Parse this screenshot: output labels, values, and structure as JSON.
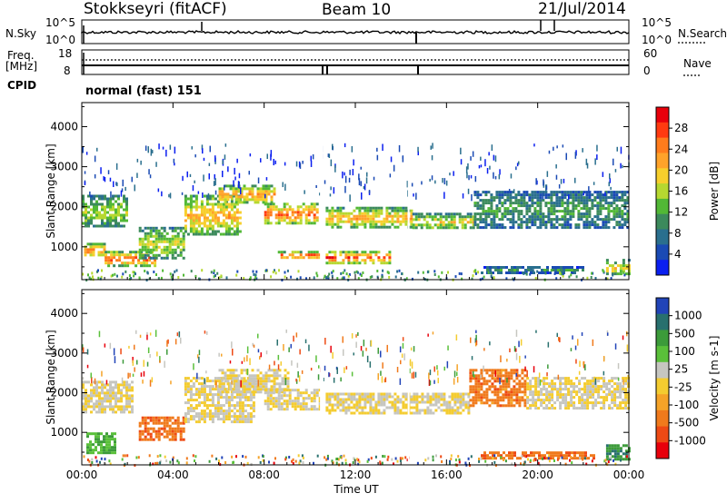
{
  "header": {
    "station": "Stokkseyri (fitACF)",
    "beam": "Beam 10",
    "date": "21/Jul/2014"
  },
  "top_panels": {
    "noise_left_label": "N.Sky",
    "noise_right_label": "N.Search",
    "noise_ticks_left": [
      "10^5",
      "10^0"
    ],
    "noise_ticks_right": [
      "10^5",
      "10^0"
    ],
    "freq_label_line1": "Freq.",
    "freq_label_line2": "[MHz]",
    "freq_ticks": [
      "18",
      "8"
    ],
    "nave_label": "Nave",
    "nave_ticks": [
      "60",
      "0"
    ],
    "cpid_label": "CPID",
    "cpid_value": "normal (fast) 151"
  },
  "chart_data": [
    {
      "type": "heatmap",
      "name": "power-panel",
      "ylabel": "Slant Range [km]",
      "xlabel": "Time UT",
      "x_ticks": [
        "00:00",
        "04:00",
        "08:00",
        "12:00",
        "16:00",
        "20:00",
        "00:00"
      ],
      "xlim_hours": [
        0,
        24
      ],
      "ylim_km": [
        180,
        4600
      ],
      "y_ticks": [
        1000,
        2000,
        3000,
        4000
      ],
      "colorbar_label": "Power [dB]",
      "colorbar_ticks": [
        "28",
        "24",
        "20",
        "16",
        "12",
        "8",
        "4"
      ],
      "colorbar_colors": [
        "#e8000b",
        "#ff3a10",
        "#ff7c1c",
        "#ffa32a",
        "#f7cf2c",
        "#b6d830",
        "#52b836",
        "#3c8a5c",
        "#2a6f8e",
        "#1a4ab4",
        "#0a1ff0"
      ],
      "bands": [
        {
          "t": [
            0.0,
            2.0
          ],
          "r": [
            1500,
            2300
          ],
          "level": 0.5
        },
        {
          "t": [
            0.1,
            1.0
          ],
          "r": [
            780,
            1100
          ],
          "level": 0.8
        },
        {
          "t": [
            1.0,
            3.2
          ],
          "r": [
            550,
            900
          ],
          "level": 0.9
        },
        {
          "t": [
            2.5,
            4.5
          ],
          "r": [
            700,
            1500
          ],
          "level": 0.55
        },
        {
          "t": [
            4.5,
            7.0
          ],
          "r": [
            1300,
            2300
          ],
          "level": 0.7
        },
        {
          "t": [
            6.0,
            8.5
          ],
          "r": [
            2100,
            2550
          ],
          "level": 0.75
        },
        {
          "t": [
            8.0,
            10.3
          ],
          "r": [
            1600,
            2100
          ],
          "level": 0.85
        },
        {
          "t": [
            8.6,
            10.4
          ],
          "r": [
            720,
            900
          ],
          "level": 0.9
        },
        {
          "t": [
            10.7,
            13.5
          ],
          "r": [
            620,
            900
          ],
          "level": 0.9
        },
        {
          "t": [
            10.7,
            14.5
          ],
          "r": [
            1500,
            2000
          ],
          "level": 0.7
        },
        {
          "t": [
            14.5,
            17.2
          ],
          "r": [
            1450,
            1850
          ],
          "level": 0.6
        },
        {
          "t": [
            17.2,
            24.0
          ],
          "r": [
            1500,
            2400
          ],
          "level": 0.35
        },
        {
          "t": [
            17.5,
            22.0
          ],
          "r": [
            380,
            520
          ],
          "level": 0.3
        },
        {
          "t": [
            23.0,
            24.0
          ],
          "r": [
            300,
            700
          ],
          "level": 0.6
        }
      ]
    },
    {
      "type": "heatmap",
      "name": "velocity-panel",
      "ylabel": "Slant Range [km]",
      "xlabel": "Time UT",
      "x_ticks": [
        "00:00",
        "04:00",
        "08:00",
        "12:00",
        "16:00",
        "20:00",
        "00:00"
      ],
      "xlim_hours": [
        0,
        24
      ],
      "ylim_km": [
        180,
        4600
      ],
      "y_ticks": [
        1000,
        2000,
        3000,
        4000
      ],
      "colorbar_label": "Velocity [m s-1]",
      "colorbar_ticks": [
        "1000",
        "500",
        "100",
        "25",
        "-25",
        "-100",
        "-500",
        "-1000"
      ],
      "colorbar_colors": [
        "#2144b8",
        "#28706e",
        "#3c9b3a",
        "#5ac03a",
        "#c6c6c0",
        "#f4cc30",
        "#f5a328",
        "#f07a1c",
        "#ee4a14",
        "#e8000b"
      ],
      "bands": [
        {
          "t": [
            0.0,
            2.2
          ],
          "r": [
            1500,
            2300
          ],
          "level": 0.5
        },
        {
          "t": [
            0.2,
            1.5
          ],
          "r": [
            500,
            1000
          ],
          "level": 0.3
        },
        {
          "t": [
            2.5,
            4.5
          ],
          "r": [
            800,
            1400
          ],
          "level": 0.8
        },
        {
          "t": [
            4.5,
            7.5
          ],
          "r": [
            1300,
            2400
          ],
          "level": 0.5
        },
        {
          "t": [
            6.0,
            9.0
          ],
          "r": [
            2000,
            2600
          ],
          "level": 0.5
        },
        {
          "t": [
            8.0,
            10.4
          ],
          "r": [
            1600,
            2100
          ],
          "level": 0.5
        },
        {
          "t": [
            10.7,
            17.0
          ],
          "r": [
            1500,
            2000
          ],
          "level": 0.5
        },
        {
          "t": [
            17.0,
            19.5
          ],
          "r": [
            1700,
            2600
          ],
          "level": 0.78
        },
        {
          "t": [
            19.5,
            24.0
          ],
          "r": [
            1600,
            2400
          ],
          "level": 0.5
        },
        {
          "t": [
            17.5,
            22.5
          ],
          "r": [
            380,
            520
          ],
          "level": 0.8
        },
        {
          "t": [
            23.0,
            24.0
          ],
          "r": [
            300,
            700
          ],
          "level": 0.2
        }
      ]
    }
  ]
}
